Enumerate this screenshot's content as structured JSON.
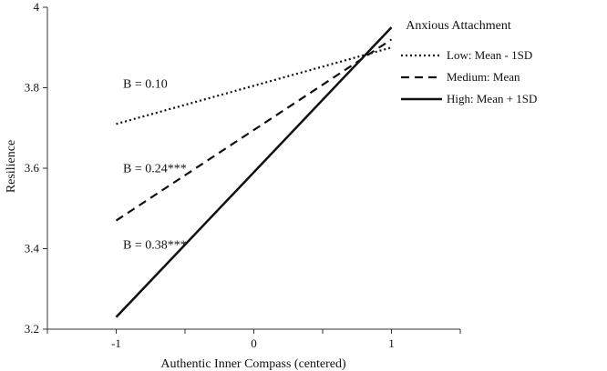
{
  "chart_data": {
    "type": "line",
    "title": "",
    "xlabel": "Authentic Inner Compass (centered)",
    "ylabel": "Resilience",
    "xlim": [
      -1.5,
      1.5
    ],
    "ylim": [
      3.2,
      4.0
    ],
    "grid": false,
    "x_ticks": [
      -1,
      0,
      1
    ],
    "x_tick_labels": [
      "-1",
      "0",
      "1"
    ],
    "y_ticks": [
      3.2,
      3.4,
      3.6,
      3.8,
      4.0
    ],
    "y_tick_labels": [
      "3.2",
      "3.4",
      "3.6",
      "3.8",
      "4"
    ],
    "legend": {
      "title": "Anxious Attachment",
      "placement": "top-right"
    },
    "series": [
      {
        "name": "Low: Mean - 1SD",
        "style": "dotted",
        "x": [
          -1,
          1
        ],
        "y": [
          3.71,
          3.9
        ]
      },
      {
        "name": "Medium: Mean",
        "style": "dashed",
        "x": [
          -1,
          1
        ],
        "y": [
          3.47,
          3.92
        ]
      },
      {
        "name": "High: Mean + 1SD",
        "style": "solid",
        "x": [
          -1,
          1
        ],
        "y": [
          3.23,
          3.95
        ]
      }
    ],
    "annotations": [
      {
        "text": "B = 0.10",
        "x": -0.95,
        "y": 3.8
      },
      {
        "text": "B = 0.24***",
        "x": -0.95,
        "y": 3.59
      },
      {
        "text": "B = 0.38***",
        "x": -0.95,
        "y": 3.4
      }
    ],
    "colors": {
      "line": "#111111",
      "axis": "#333333"
    }
  }
}
